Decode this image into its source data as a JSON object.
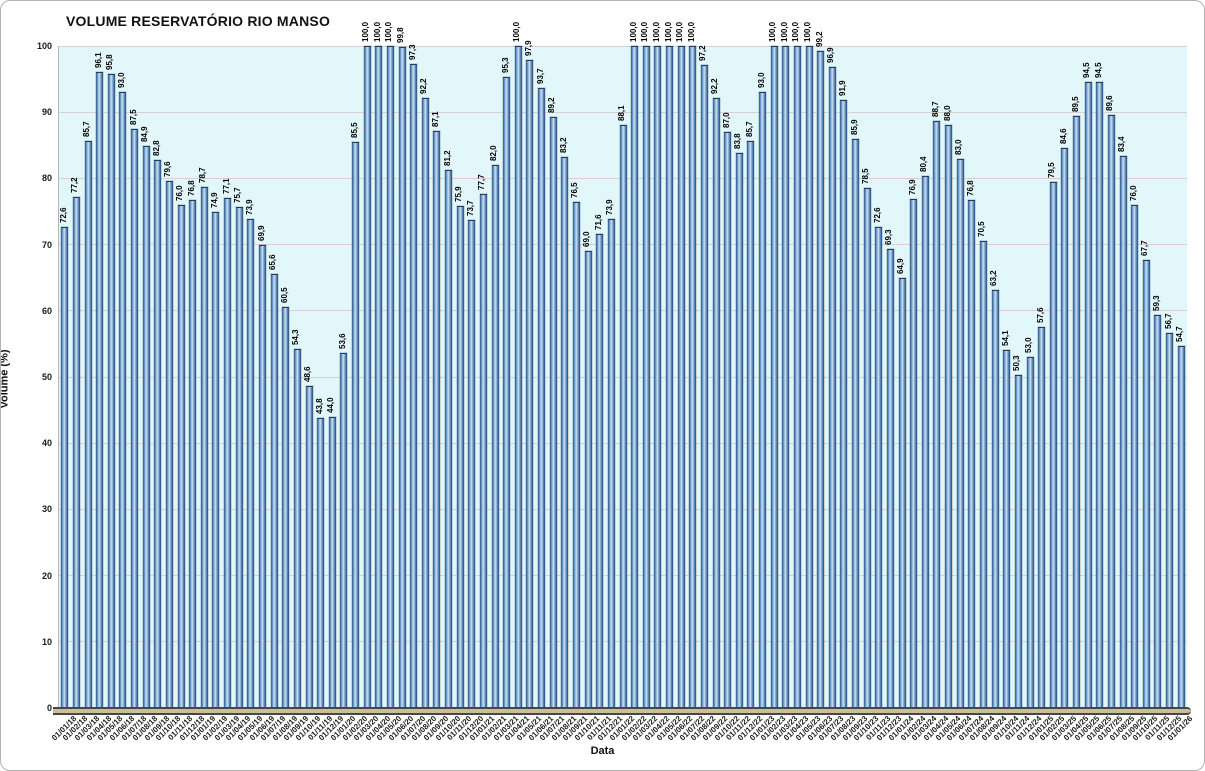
{
  "header": {
    "title": "VOLUME RESERVATÓRIO RIO MANSO"
  },
  "chart_data": {
    "type": "bar",
    "title": "VOLUME RESERVATÓRIO RIO MANSO",
    "xlabel": "Data",
    "ylabel": "Volume (%)",
    "ylim": [
      0,
      100
    ],
    "yticks": [
      0,
      10,
      20,
      30,
      40,
      50,
      60,
      70,
      80,
      90,
      100
    ],
    "grid": "horizontal",
    "legend": "none",
    "decimal_separator": ",",
    "bar_color_mid": "#6f9cce",
    "bar_color_edge": "#2e5580",
    "plot_bg": "#e2f7fa",
    "gridline_color": "#d9cfcf",
    "floor_color": "#c9c098",
    "categories": [
      "01/01/18",
      "01/02/18",
      "01/03/18",
      "01/04/18",
      "01/05/18",
      "01/06/18",
      "01/07/18",
      "01/08/18",
      "01/09/18",
      "01/10/18",
      "01/11/18",
      "01/12/18",
      "01/01/19",
      "01/02/19",
      "01/03/19",
      "01/04/19",
      "01/05/19",
      "01/06/19",
      "01/07/19",
      "01/08/19",
      "01/09/19",
      "01/10/19",
      "01/11/19",
      "01/12/19",
      "01/01/20",
      "01/02/20",
      "01/03/20",
      "01/04/20",
      "01/05/20",
      "01/06/20",
      "01/07/20",
      "01/08/20",
      "01/09/20",
      "01/10/20",
      "01/11/20",
      "01/12/20",
      "01/01/21",
      "01/02/21",
      "01/03/21",
      "01/04/21",
      "01/05/21",
      "01/06/21",
      "01/07/21",
      "01/08/21",
      "01/09/21",
      "01/10/21",
      "01/11/21",
      "01/12/21",
      "01/01/22",
      "01/02/22",
      "01/03/22",
      "01/04/22",
      "01/05/22",
      "01/06/22",
      "01/07/22",
      "01/08/22",
      "01/09/22",
      "01/10/22",
      "01/11/22",
      "01/12/22",
      "01/01/23",
      "01/02/23",
      "01/03/23",
      "01/04/23",
      "01/05/23",
      "01/06/23",
      "01/07/23",
      "01/08/23",
      "01/09/23",
      "01/10/23",
      "01/11/23",
      "01/12/23",
      "01/01/24",
      "01/02/24",
      "01/03/24",
      "01/04/24",
      "01/05/24",
      "01/06/24",
      "01/07/24",
      "01/08/24",
      "01/09/24",
      "01/10/24",
      "01/11/24",
      "01/12/24",
      "01/01/25",
      "01/02/25",
      "01/03/25",
      "01/04/25",
      "01/05/25",
      "01/06/25",
      "01/07/25",
      "01/08/25",
      "01/09/25",
      "01/10/25",
      "01/11/25",
      "01/12/25",
      "01/01/26"
    ],
    "values": [
      72.6,
      77.2,
      85.7,
      96.1,
      95.8,
      93.0,
      87.5,
      84.9,
      82.8,
      79.6,
      76.0,
      76.8,
      78.7,
      74.9,
      77.1,
      75.7,
      73.9,
      69.9,
      65.6,
      60.5,
      54.3,
      48.6,
      43.8,
      44.0,
      53.6,
      85.5,
      100.0,
      100.0,
      100.0,
      99.8,
      97.3,
      92.2,
      87.1,
      81.2,
      75.9,
      73.7,
      77.7,
      82.0,
      95.3,
      100.0,
      97.9,
      93.7,
      89.2,
      83.2,
      76.5,
      69.0,
      71.6,
      73.9,
      88.1,
      100.0,
      100.0,
      100.0,
      100.0,
      100.0,
      100.0,
      97.2,
      92.2,
      87.0,
      83.8,
      85.7,
      93.0,
      100.0,
      100.0,
      100.0,
      100.0,
      99.2,
      96.9,
      91.9,
      85.9,
      78.5,
      72.6,
      69.3,
      64.9,
      76.9,
      80.4,
      88.7,
      88.0,
      83.0,
      76.8,
      70.5,
      63.2,
      54.1,
      50.3,
      53.0,
      57.6,
      79.5,
      84.6,
      89.5,
      94.5,
      94.5,
      89.6,
      83.4,
      76.0,
      67.7,
      59.3,
      56.7,
      54.7
    ]
  }
}
